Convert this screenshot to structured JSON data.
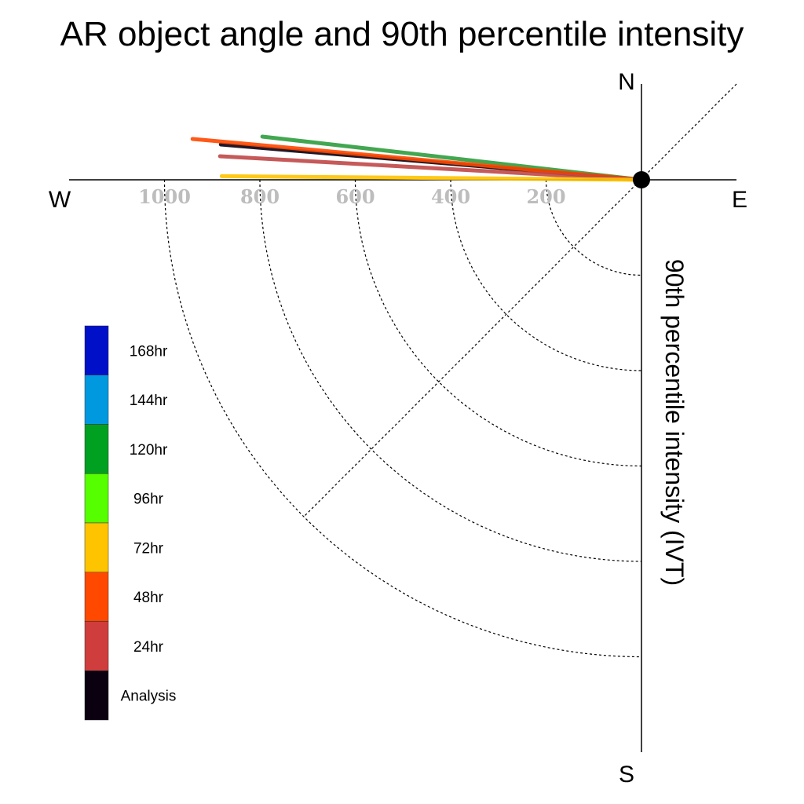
{
  "chart_data": {
    "type": "polar-vector",
    "title": "AR object angle and 90th percentile intensity",
    "ylabel": "90th percentile intensity (IVT)",
    "compass": {
      "north": "N",
      "south": "S",
      "east": "E",
      "west": "W"
    },
    "radial_ticks": [
      {
        "value": 200,
        "label": "200"
      },
      {
        "value": 400,
        "label": "400"
      },
      {
        "value": 600,
        "label": "600"
      },
      {
        "value": 800,
        "label": "800"
      },
      {
        "value": 1000,
        "label": "1000"
      }
    ],
    "rlim": [
      0,
      1250
    ],
    "legend": {
      "placement": "left",
      "entries": [
        {
          "label": "168hr",
          "color": "#0010c8"
        },
        {
          "label": "144hr",
          "color": "#0099e0"
        },
        {
          "label": "120hr",
          "color": "#00a020"
        },
        {
          "label": "96hr",
          "color": "#55ff00"
        },
        {
          "label": "72hr",
          "color": "#ffc400"
        },
        {
          "label": "48hr",
          "color": "#ff4800"
        },
        {
          "label": "24hr",
          "color": "#d03d3d"
        },
        {
          "label": "Analysis",
          "color": "#0b0010"
        }
      ]
    },
    "vectors": [
      {
        "name": "120hr",
        "color": "#2e9e3e",
        "intensity": 800,
        "angle_deg": 173.5
      },
      {
        "name": "Analysis",
        "color": "#0b0010",
        "intensity": 885,
        "angle_deg": 175.2
      },
      {
        "name": "48hr",
        "color": "#ff4800",
        "intensity": 945,
        "angle_deg": 174.8
      },
      {
        "name": "24hr",
        "color": "#c04848",
        "intensity": 885,
        "angle_deg": 176.8
      },
      {
        "name": "72hr",
        "color": "#ffc400",
        "intensity": 880,
        "angle_deg": 179.5
      }
    ]
  }
}
